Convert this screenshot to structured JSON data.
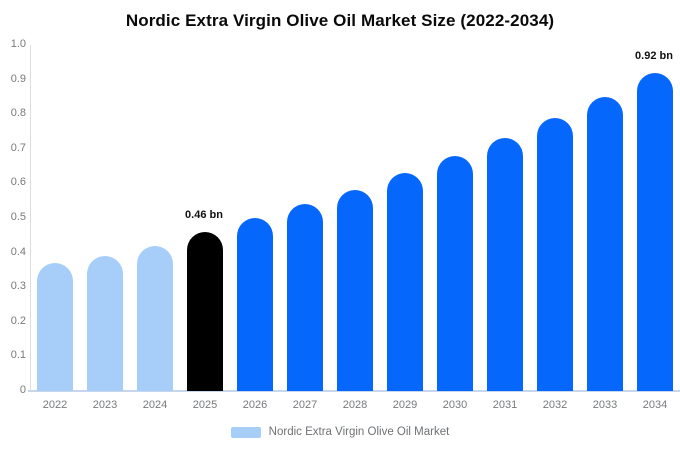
{
  "chart_data": {
    "type": "bar",
    "title": "Nordic Extra Virgin Olive Oil Market Size (2022-2034)",
    "xlabel": "",
    "ylabel": "",
    "categories": [
      "2022",
      "2023",
      "2024",
      "2025",
      "2026",
      "2027",
      "2028",
      "2029",
      "2030",
      "2031",
      "2032",
      "2033",
      "2034"
    ],
    "values": [
      0.37,
      0.39,
      0.42,
      0.46,
      0.5,
      0.54,
      0.58,
      0.63,
      0.68,
      0.73,
      0.79,
      0.85,
      0.92
    ],
    "bar_colors": [
      "#A6CEF8",
      "#A6CEF8",
      "#A6CEF8",
      "#000000",
      "#0667FD",
      "#0667FD",
      "#0667FD",
      "#0667FD",
      "#0667FD",
      "#0667FD",
      "#0667FD",
      "#0667FD",
      "#0667FD"
    ],
    "annotations": [
      {
        "category": "2025",
        "text": "0.46 bn"
      },
      {
        "category": "2034",
        "text": "0.92 bn"
      }
    ],
    "ylim": [
      0,
      1.0
    ],
    "ytick_step": 0.1,
    "yticks": [
      "0",
      "0.1",
      "0.2",
      "0.3",
      "0.4",
      "0.5",
      "0.6",
      "0.7",
      "0.8",
      "0.9",
      "1.0"
    ],
    "grid": false,
    "legend_position": "bottom",
    "legend": {
      "label": "Nordic Extra Virgin Olive Oil Market",
      "swatch_color": "#A6CEF8"
    },
    "colors": {
      "historical_bar": "#A6CEF8",
      "base_year_bar": "#000000",
      "forecast_bar": "#0667FD",
      "y_axis_line": "#dcdcdc",
      "x_baseline": "#c7d6ea",
      "tick_text": "#77797c",
      "title_text": "#0a0a0a"
    }
  }
}
